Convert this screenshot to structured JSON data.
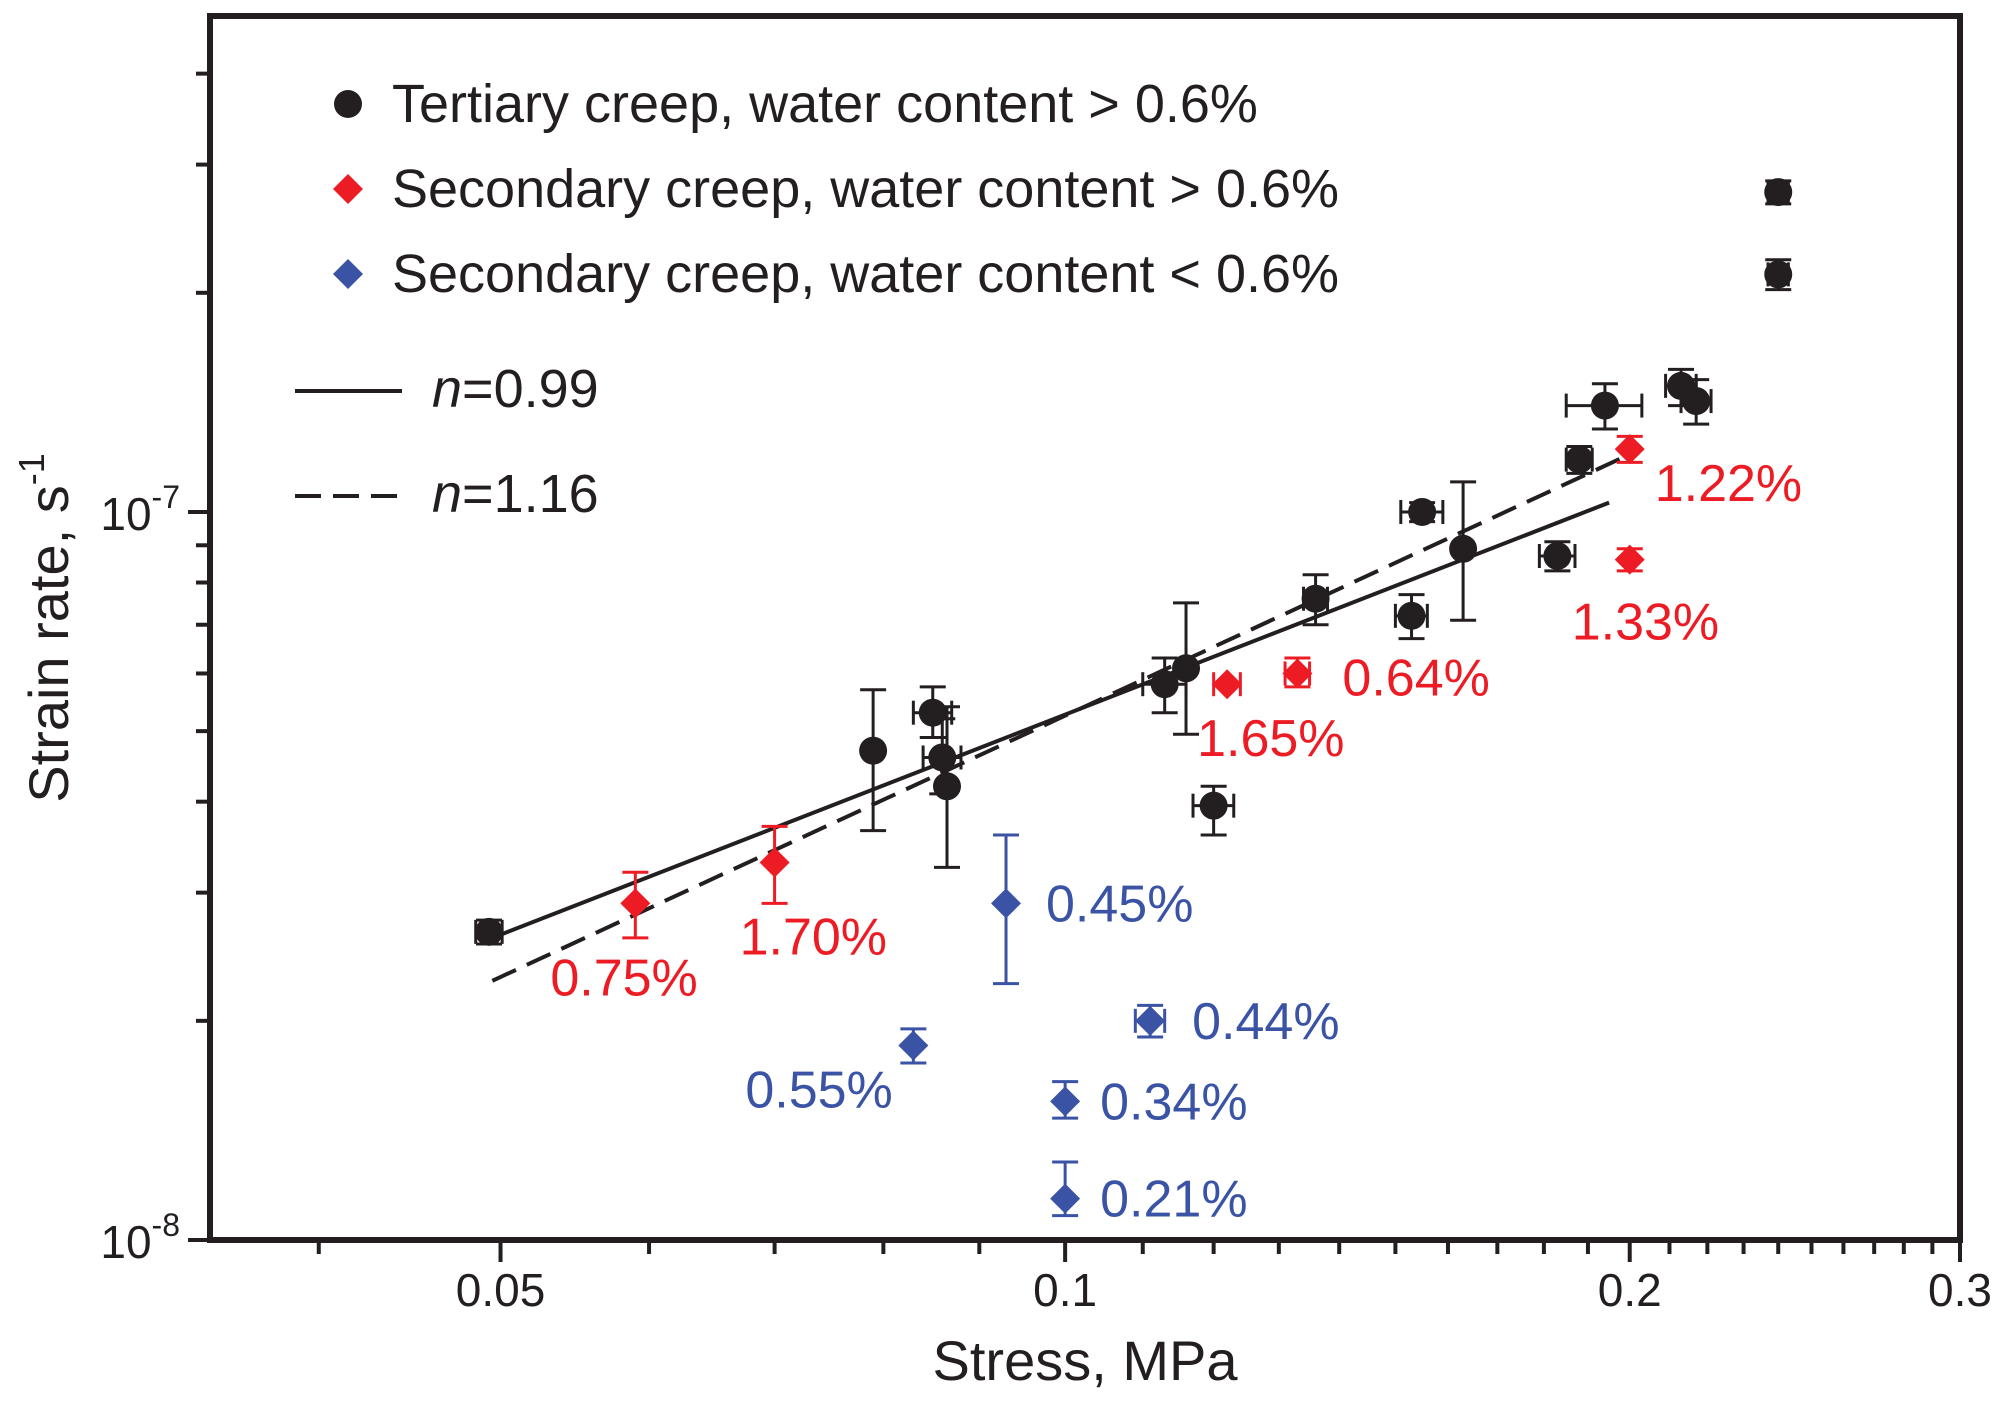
{
  "chart_data": {
    "type": "scatter",
    "title": "",
    "xlabel": "Stress, MPa",
    "ylabel": "Strain rate, s",
    "ylabel_superscript": "-1",
    "x_scale": "log",
    "y_scale": "log",
    "xlim": [
      0.035,
      0.3
    ],
    "ylim": [
      1e-08,
      4.8e-07
    ],
    "grid": false,
    "legend_position": "top-left",
    "x_ticks": [
      {
        "value": 0.05,
        "label": "0.05"
      },
      {
        "value": 0.1,
        "label": "0.1"
      },
      {
        "value": 0.2,
        "label": "0.2"
      },
      {
        "value": 0.3,
        "label": "0.3"
      }
    ],
    "y_ticks": [
      {
        "value": 1e-08,
        "base": "10",
        "exp": "-8"
      },
      {
        "value": 1e-07,
        "base": "10",
        "exp": "-7"
      }
    ],
    "colors": {
      "black": "#231f20",
      "red": "#ed1c24",
      "blue": "#3a53a4"
    },
    "series": [
      {
        "name": "Tertiary creep, water content > 0.6%",
        "marker": "circle",
        "color": "#231f20",
        "points": [
          {
            "x": 0.0493,
            "y": 2.65e-08,
            "xerr": 0.0008,
            "ylo": 2.55e-08,
            "yhi": 2.75e-08
          },
          {
            "x": 0.079,
            "y": 4.7e-08,
            "ylo": 3.65e-08,
            "yhi": 5.7e-08
          },
          {
            "x": 0.085,
            "y": 5.3e-08,
            "xerr": 0.002,
            "ylo": 4.9e-08,
            "yhi": 5.75e-08
          },
          {
            "x": 0.086,
            "y": 4.6e-08,
            "xerr": 0.002,
            "ylo": 4.1e-08,
            "yhi": 5.2e-08
          },
          {
            "x": 0.0865,
            "y": 4.2e-08,
            "ylo": 3.25e-08,
            "yhi": 5.4e-08
          },
          {
            "x": 0.113,
            "y": 5.8e-08,
            "xerr": 0.003,
            "ylo": 5.3e-08,
            "yhi": 6.3e-08
          },
          {
            "x": 0.116,
            "y": 6.1e-08,
            "ylo": 4.95e-08,
            "yhi": 7.5e-08
          },
          {
            "x": 0.12,
            "y": 3.95e-08,
            "xerr": 0.003,
            "ylo": 3.6e-08,
            "yhi": 4.2e-08
          },
          {
            "x": 0.136,
            "y": 7.6e-08,
            "xerr": 0.002,
            "ylo": 7e-08,
            "yhi": 8.2e-08
          },
          {
            "x": 0.153,
            "y": 7.2e-08,
            "xerr": 0.003,
            "ylo": 6.7e-08,
            "yhi": 7.7e-08
          },
          {
            "x": 0.155,
            "y": 1e-07,
            "xerr": 0.004,
            "ylo": 9.7e-08,
            "yhi": 1.03e-07
          },
          {
            "x": 0.163,
            "y": 8.9e-08,
            "ylo": 7.1e-08,
            "yhi": 1.1e-07
          },
          {
            "x": 0.183,
            "y": 8.7e-08,
            "xerr": 0.004,
            "ylo": 8.3e-08,
            "yhi": 9.1e-08
          },
          {
            "x": 0.188,
            "y": 1.18e-07,
            "xerr": 0.003,
            "ylo": 1.13e-07,
            "yhi": 1.23e-07
          },
          {
            "x": 0.194,
            "y": 1.4e-07,
            "xerr": 0.009,
            "ylo": 1.3e-07,
            "yhi": 1.5e-07
          },
          {
            "x": 0.213,
            "y": 1.49e-07,
            "xerr": 0.004,
            "ylo": 1.4e-07,
            "yhi": 1.57e-07
          },
          {
            "x": 0.217,
            "y": 1.42e-07,
            "xerr": 0.004,
            "ylo": 1.32e-07,
            "yhi": 1.52e-07
          },
          {
            "x": 0.24,
            "y": 2.75e-07,
            "xerr": 0.003,
            "ylo": 2.65e-07,
            "yhi": 2.85e-07
          },
          {
            "x": 0.24,
            "y": 2.12e-07,
            "xerr": 0.003,
            "ylo": 2.02e-07,
            "yhi": 2.22e-07
          }
        ]
      },
      {
        "name": "Secondary creep, water content > 0.6%",
        "marker": "diamond",
        "color": "#ed1c24",
        "points": [
          {
            "x": 0.059,
            "y": 2.9e-08,
            "ylo": 2.6e-08,
            "yhi": 3.2e-08,
            "label": "0.75%"
          },
          {
            "x": 0.07,
            "y": 3.3e-08,
            "ylo": 2.9e-08,
            "yhi": 3.7e-08,
            "label": "1.70%"
          },
          {
            "x": 0.122,
            "y": 5.8e-08,
            "xerr": 0.002,
            "label": "1.65%"
          },
          {
            "x": 0.133,
            "y": 6e-08,
            "xerr": 0.002,
            "ylo": 5.75e-08,
            "yhi": 6.3e-08,
            "label": "0.64%"
          },
          {
            "x": 0.2,
            "y": 1.22e-07,
            "ylo": 1.17e-07,
            "yhi": 1.27e-07,
            "label": "1.22%"
          },
          {
            "x": 0.2,
            "y": 8.6e-08,
            "ylo": 8.3e-08,
            "yhi": 8.9e-08,
            "label": "1.33%"
          }
        ]
      },
      {
        "name": "Secondary creep, water content < 0.6%",
        "marker": "diamond",
        "color": "#3a53a4",
        "points": [
          {
            "x": 0.083,
            "y": 1.85e-08,
            "ylo": 1.75e-08,
            "yhi": 1.95e-08,
            "label": "0.55%"
          },
          {
            "x": 0.093,
            "y": 2.9e-08,
            "ylo": 2.25e-08,
            "yhi": 3.6e-08,
            "label": "0.45%"
          },
          {
            "x": 0.1,
            "y": 1.55e-08,
            "ylo": 1.47e-08,
            "yhi": 1.65e-08,
            "label": "0.34%"
          },
          {
            "x": 0.1,
            "y": 1.14e-08,
            "ylo": 1.08e-08,
            "yhi": 1.28e-08,
            "label": "0.21%"
          },
          {
            "x": 0.111,
            "y": 2e-08,
            "xerr": 0.002,
            "ylo": 1.9e-08,
            "yhi": 2.1e-08,
            "label": "0.44%"
          }
        ]
      }
    ],
    "fits": [
      {
        "name": "n=0.99",
        "label_italic": "n",
        "label_rest": "=0.99",
        "style": "solid",
        "x": [
          0.0495,
          0.195
        ],
        "y": [
          2.6e-08,
          1.03e-07
        ]
      },
      {
        "name": "n=1.16",
        "label_italic": "n",
        "label_rest": "=1.16",
        "style": "dashed",
        "x": [
          0.0495,
          0.2
        ],
        "y": [
          2.27e-08,
          1.2e-07
        ]
      }
    ]
  }
}
